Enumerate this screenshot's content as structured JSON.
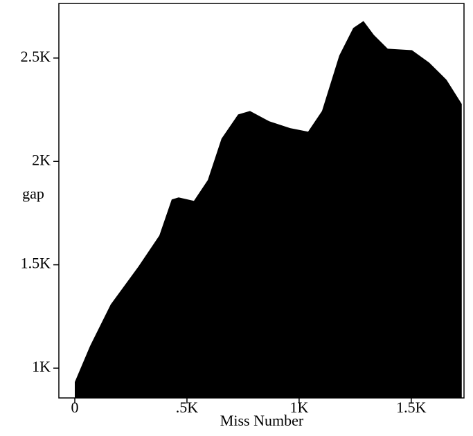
{
  "chart_data": {
    "type": "area",
    "x_label": "Miss Number",
    "y_label": "gap",
    "color": "#000000",
    "x": [
      0,
      68,
      160,
      284,
      377,
      432,
      463,
      531,
      593,
      654,
      728,
      781,
      867,
      960,
      1040,
      1102,
      1179,
      1241,
      1287,
      1333,
      1395,
      1503,
      1580,
      1657,
      1725
    ],
    "values": [
      933,
      1107,
      1308,
      1492,
      1642,
      1816,
      1826,
      1809,
      1910,
      2110,
      2227,
      2244,
      2194,
      2161,
      2144,
      2244,
      2512,
      2645,
      2679,
      2612,
      2545,
      2538,
      2478,
      2395,
      2278
    ],
    "xlim": [
      -71,
      1735
    ],
    "ylim": [
      856,
      2764
    ],
    "xticks": [
      0,
      {
        "value": 500,
        "label": ".5K"
      },
      {
        "value": 1000,
        "label": "1K"
      },
      {
        "value": 1500,
        "label": "1.5K"
      }
    ],
    "yticks": [
      {
        "value": 1000,
        "label": "1K"
      },
      {
        "value": 1500,
        "label": "1.5K"
      },
      {
        "value": 2000,
        "label": "2K"
      },
      {
        "value": 2500,
        "label": "2.5K"
      }
    ]
  }
}
